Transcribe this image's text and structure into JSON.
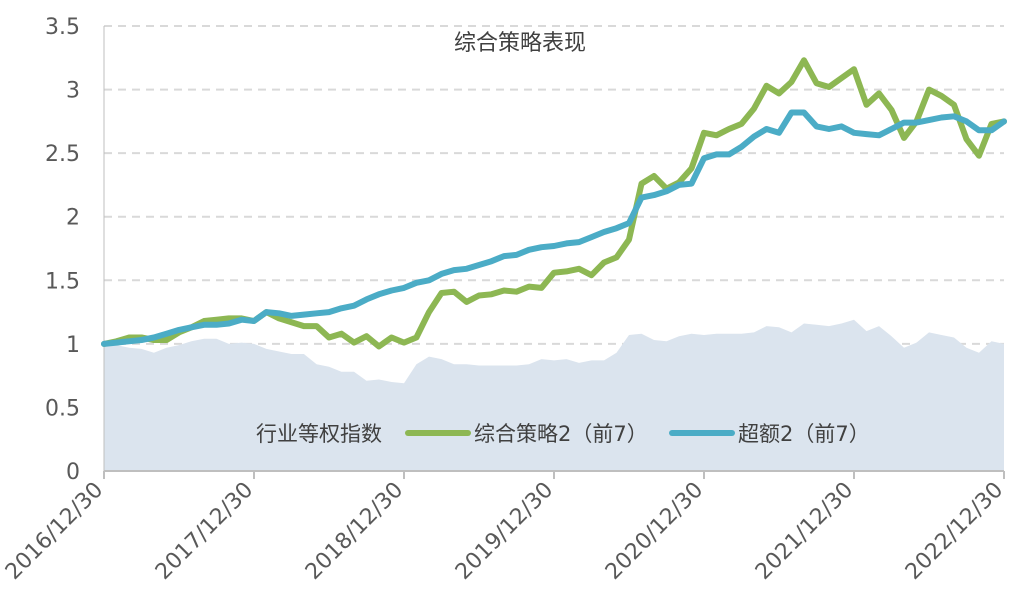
{
  "chart_data": {
    "type": "line",
    "title": "综合策略表现",
    "xlabel": "",
    "ylabel": "",
    "ylim": [
      0,
      3.5
    ],
    "yticks": [
      "0",
      "0.5",
      "1",
      "1.5",
      "2",
      "2.5",
      "3",
      "3.5"
    ],
    "xlim": [
      0,
      6
    ],
    "xtick_labels": [
      "2016/12/30",
      "2017/12/30",
      "2018/12/30",
      "2019/12/30",
      "2020/12/30",
      "2021/12/30",
      "2022/12/30"
    ],
    "grid": "horizontal dashed",
    "legend_position": "bottom-center",
    "x": [
      0,
      0.083,
      0.167,
      0.25,
      0.333,
      0.417,
      0.5,
      0.583,
      0.667,
      0.75,
      0.833,
      0.917,
      1.0,
      1.083,
      1.167,
      1.25,
      1.333,
      1.417,
      1.5,
      1.583,
      1.667,
      1.75,
      1.833,
      1.917,
      2.0,
      2.083,
      2.167,
      2.25,
      2.333,
      2.417,
      2.5,
      2.583,
      2.667,
      2.75,
      2.833,
      2.917,
      3.0,
      3.083,
      3.167,
      3.25,
      3.333,
      3.417,
      3.5,
      3.583,
      3.667,
      3.75,
      3.833,
      3.917,
      4.0,
      4.083,
      4.167,
      4.25,
      4.333,
      4.417,
      4.5,
      4.583,
      4.667,
      4.75,
      4.833,
      4.917,
      5.0,
      5.083,
      5.167,
      5.25,
      5.333,
      5.417,
      5.5,
      5.583,
      5.667,
      5.75,
      5.833,
      5.917,
      6.0
    ],
    "series": [
      {
        "name": "行业等权指数",
        "type": "area",
        "color": "#dbe4ee",
        "values": [
          1.0,
          0.99,
          0.97,
          0.96,
          0.93,
          0.97,
          0.99,
          1.02,
          1.04,
          1.04,
          1.0,
          1.01,
          1.0,
          0.96,
          0.94,
          0.92,
          0.92,
          0.84,
          0.82,
          0.78,
          0.78,
          0.71,
          0.72,
          0.7,
          0.69,
          0.84,
          0.9,
          0.88,
          0.84,
          0.84,
          0.83,
          0.83,
          0.83,
          0.83,
          0.84,
          0.88,
          0.87,
          0.88,
          0.85,
          0.87,
          0.87,
          0.93,
          1.07,
          1.08,
          1.03,
          1.02,
          1.06,
          1.08,
          1.07,
          1.08,
          1.08,
          1.08,
          1.09,
          1.14,
          1.13,
          1.09,
          1.16,
          1.15,
          1.14,
          1.16,
          1.19,
          1.1,
          1.14,
          1.06,
          0.97,
          1.01,
          1.09,
          1.07,
          1.05,
          0.97,
          0.93,
          1.02,
          1.0
        ]
      },
      {
        "name": "综合策略2（前7）",
        "type": "line",
        "color": "#8db753",
        "values": [
          1.0,
          1.02,
          1.05,
          1.05,
          1.03,
          1.03,
          1.09,
          1.13,
          1.18,
          1.19,
          1.2,
          1.2,
          1.18,
          1.25,
          1.2,
          1.17,
          1.14,
          1.14,
          1.05,
          1.08,
          1.01,
          1.06,
          0.98,
          1.05,
          1.01,
          1.05,
          1.25,
          1.4,
          1.41,
          1.33,
          1.38,
          1.39,
          1.42,
          1.41,
          1.45,
          1.44,
          1.56,
          1.57,
          1.59,
          1.54,
          1.64,
          1.68,
          1.82,
          2.26,
          2.32,
          2.22,
          2.27,
          2.38,
          2.66,
          2.64,
          2.69,
          2.73,
          2.85,
          3.03,
          2.97,
          3.06,
          3.23,
          3.05,
          3.02,
          3.09,
          3.16,
          2.88,
          2.97,
          2.84,
          2.62,
          2.75,
          3.0,
          2.95,
          2.88,
          2.61,
          2.48,
          2.73,
          2.75
        ]
      },
      {
        "name": "超额2（前7）",
        "type": "line",
        "color": "#4bacc6",
        "values": [
          1.0,
          1.01,
          1.02,
          1.03,
          1.05,
          1.08,
          1.11,
          1.13,
          1.15,
          1.15,
          1.16,
          1.19,
          1.18,
          1.25,
          1.24,
          1.22,
          1.23,
          1.24,
          1.25,
          1.28,
          1.3,
          1.35,
          1.39,
          1.42,
          1.44,
          1.48,
          1.5,
          1.55,
          1.58,
          1.59,
          1.62,
          1.65,
          1.69,
          1.7,
          1.74,
          1.76,
          1.77,
          1.79,
          1.8,
          1.84,
          1.88,
          1.91,
          1.95,
          2.15,
          2.17,
          2.2,
          2.25,
          2.26,
          2.46,
          2.49,
          2.49,
          2.55,
          2.63,
          2.69,
          2.66,
          2.82,
          2.82,
          2.71,
          2.69,
          2.71,
          2.66,
          2.65,
          2.64,
          2.69,
          2.74,
          2.74,
          2.76,
          2.78,
          2.79,
          2.75,
          2.68,
          2.68,
          2.75
        ]
      }
    ]
  }
}
